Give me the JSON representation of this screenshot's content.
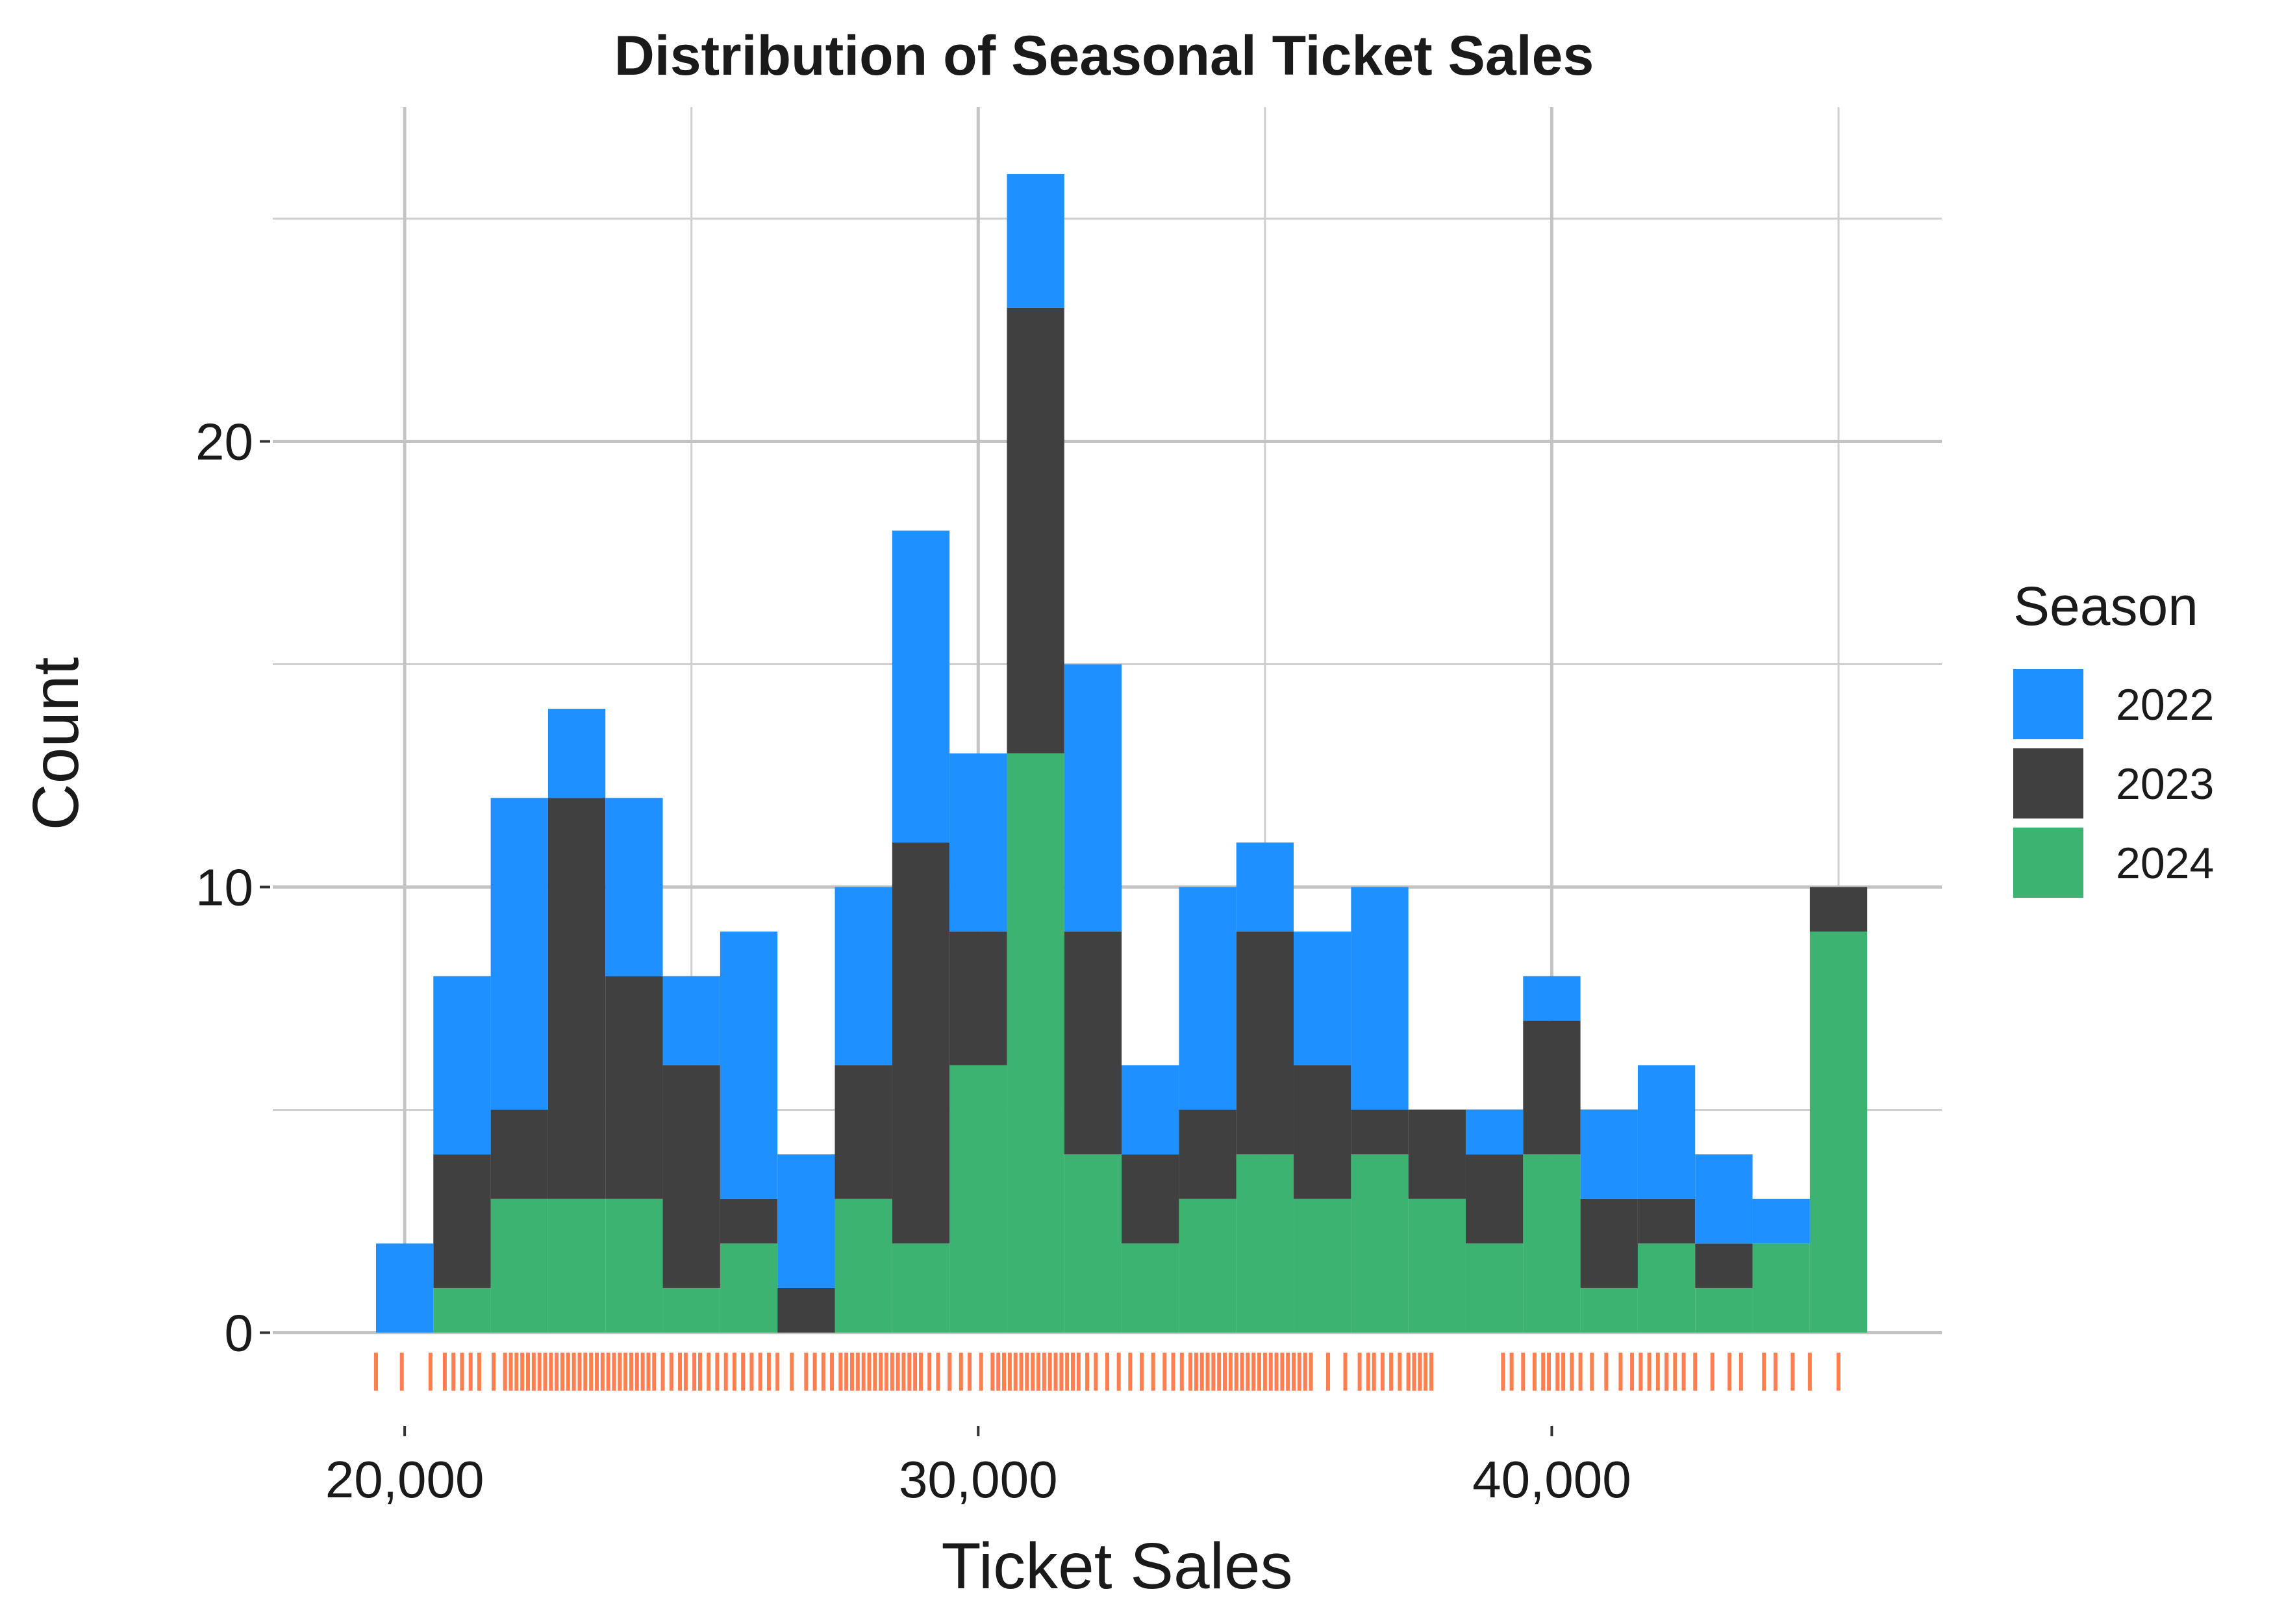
{
  "chart_data": {
    "type": "histogram",
    "title": "Distribution of Seasonal Ticket Sales",
    "xlabel": "Ticket Sales",
    "ylabel": "Count",
    "xlim": [
      17700,
      46800
    ],
    "ylim": [
      -1.8,
      27.5
    ],
    "x_ticks": [
      20000,
      30000,
      40000
    ],
    "x_tick_labels": [
      "20,000",
      "30,000",
      "40,000"
    ],
    "y_ticks": [
      0,
      10,
      20
    ],
    "y_tick_labels": [
      "0",
      "10",
      "20"
    ],
    "y_minor_gridlines": [
      5,
      15,
      25
    ],
    "x_minor_gridlines": [
      25000,
      35000,
      45000
    ],
    "grid": true,
    "stacked": true,
    "bin_width": 1000,
    "bin_starts": [
      19500,
      20500,
      21500,
      22500,
      23500,
      24500,
      25500,
      26500,
      27500,
      28500,
      29500,
      30500,
      31500,
      32500,
      33500,
      34500,
      35500,
      36500,
      37500,
      38500,
      39500,
      40500,
      41500,
      42500,
      43500,
      44500
    ],
    "series": [
      {
        "name": "2024",
        "color": "#3CB371",
        "values": [
          0,
          1,
          3,
          3,
          3,
          1,
          2,
          0,
          3,
          2,
          6,
          13,
          4,
          2,
          3,
          4,
          3,
          4,
          3,
          2,
          4,
          1,
          2,
          1,
          2,
          9
        ]
      },
      {
        "name": "2023",
        "color": "#404040",
        "values": [
          0,
          3,
          2,
          9,
          5,
          5,
          1,
          1,
          3,
          9,
          3,
          10,
          5,
          2,
          2,
          5,
          3,
          1,
          2,
          2,
          3,
          2,
          1,
          1,
          0,
          1
        ]
      },
      {
        "name": "2022",
        "color": "#1E90FF",
        "values": [
          2,
          4,
          7,
          2,
          4,
          2,
          6,
          3,
          4,
          7,
          4,
          3,
          6,
          2,
          5,
          2,
          3,
          5,
          0,
          1,
          1,
          2,
          3,
          2,
          1,
          0
        ]
      }
    ],
    "legend": {
      "title": "Season",
      "placement": "right",
      "entries": [
        {
          "label": "2022",
          "color": "#1E90FF"
        },
        {
          "label": "2023",
          "color": "#404040"
        },
        {
          "label": "2024",
          "color": "#3CB371"
        }
      ]
    },
    "rug": {
      "color": "#FF7F50",
      "values": [
        19500,
        19950,
        20450,
        20700,
        20850,
        21000,
        21150,
        21300,
        21550,
        21750,
        21850,
        21950,
        22050,
        22150,
        22250,
        22350,
        22450,
        22550,
        22650,
        22750,
        22850,
        22950,
        23050,
        23150,
        23250,
        23350,
        23450,
        23550,
        23650,
        23750,
        23850,
        23950,
        24050,
        24150,
        24250,
        24350,
        24500,
        24650,
        24800,
        24900,
        25050,
        25150,
        25300,
        25450,
        25600,
        25750,
        25900,
        26050,
        26200,
        26350,
        26500,
        26750,
        27000,
        27150,
        27300,
        27450,
        27600,
        27700,
        27800,
        27900,
        28000,
        28100,
        28200,
        28300,
        28400,
        28500,
        28600,
        28700,
        28800,
        28900,
        29000,
        29150,
        29300,
        29500,
        29700,
        29850,
        30050,
        30250,
        30350,
        30450,
        30550,
        30650,
        30750,
        30850,
        30950,
        31050,
        31150,
        31250,
        31350,
        31450,
        31550,
        31650,
        31750,
        31900,
        32050,
        32250,
        32450,
        32650,
        32850,
        33050,
        33250,
        33400,
        33550,
        33700,
        33800,
        33900,
        34000,
        34100,
        34200,
        34300,
        34400,
        34500,
        34600,
        34700,
        34800,
        34900,
        35000,
        35100,
        35200,
        35300,
        35400,
        35500,
        35600,
        35700,
        35800,
        36100,
        36400,
        36650,
        36800,
        36900,
        37050,
        37200,
        37350,
        37500,
        37600,
        37700,
        37800,
        37900,
        39150,
        39300,
        39500,
        39700,
        39850,
        39950,
        40100,
        40200,
        40350,
        40500,
        40700,
        40950,
        41200,
        41400,
        41550,
        41700,
        41850,
        42000,
        42150,
        42300,
        42500,
        42800,
        43100,
        43300,
        43700,
        43900,
        44200,
        44500,
        45000
      ]
    }
  }
}
